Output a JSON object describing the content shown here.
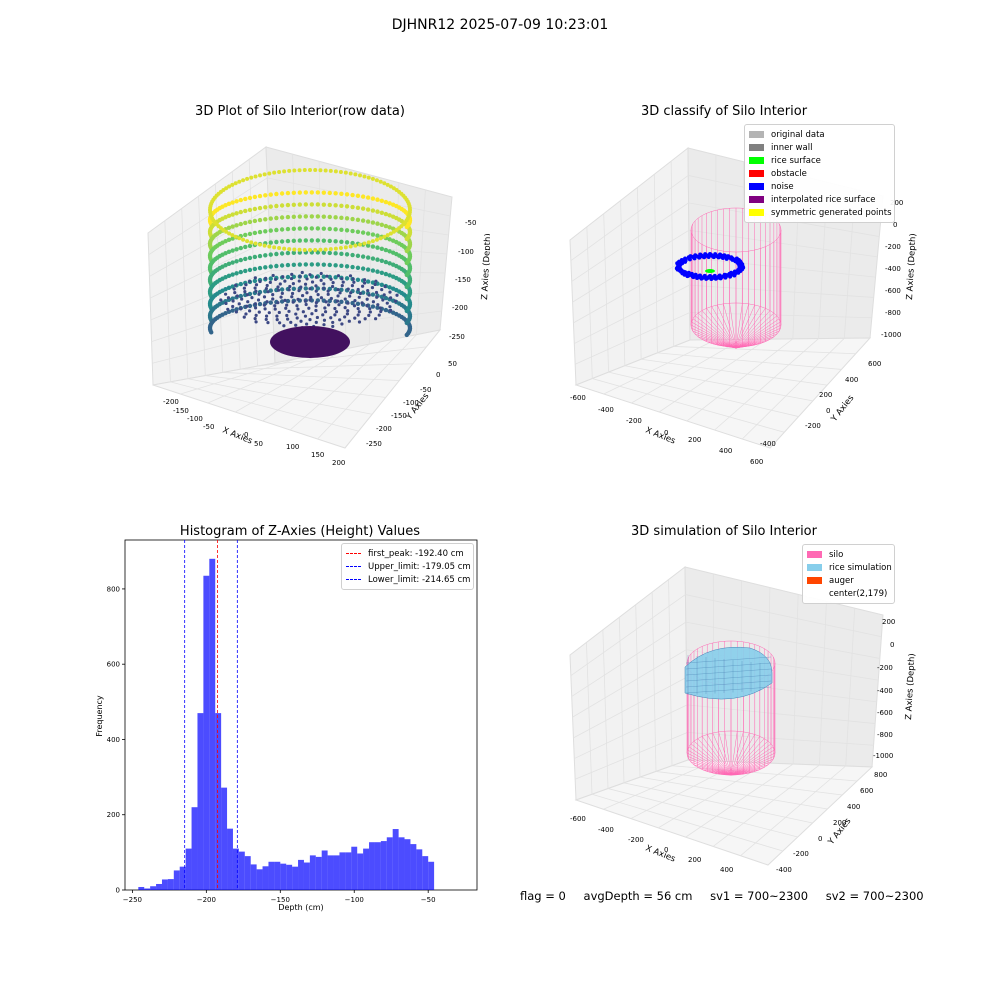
{
  "figure": {
    "suptitle": "DJHNR12 2025-07-09 10:23:01"
  },
  "raw_plot": {
    "title": "3D Plot of Silo Interior(row data)",
    "xlabel": "X Axies",
    "ylabel": "Y Axies",
    "zlabel": "Z Axies (Depth)",
    "x_ticks": [
      "-200",
      "-150",
      "-100",
      "-50",
      "0",
      "50",
      "100",
      "150",
      "200"
    ],
    "y_ticks": [
      "50",
      "0",
      "-50",
      "-100",
      "-150",
      "-200",
      "-250"
    ],
    "z_ticks": [
      "-50",
      "-100",
      "-150",
      "-200",
      "-250"
    ]
  },
  "classify_plot": {
    "title": "3D classify of Silo Interior",
    "xlabel": "X Axies",
    "ylabel": "Y Axies",
    "zlabel": "Z Axies (Depth)",
    "x_ticks": [
      "-600",
      "-400",
      "-200",
      "0",
      "200",
      "400",
      "600"
    ],
    "y_ticks": [
      "600",
      "400",
      "200",
      "0",
      "-200",
      "-400"
    ],
    "z_ticks": [
      "200",
      "0",
      "-200",
      "-400",
      "-600",
      "-800",
      "-1000"
    ],
    "legend": [
      {
        "label": "original data",
        "color": "#b4b4b4"
      },
      {
        "label": "inner wall",
        "color": "#808080"
      },
      {
        "label": "rice surface",
        "color": "#00ff00"
      },
      {
        "label": "obstacle",
        "color": "#ff0000"
      },
      {
        "label": "noise",
        "color": "#0000ff"
      },
      {
        "label": "interpolated rice surface",
        "color": "#800080"
      },
      {
        "label": "symmetric generated points",
        "color": "#ffff00"
      }
    ]
  },
  "sim_plot": {
    "title": "3D simulation of Silo Interior",
    "xlabel": "X Axies",
    "ylabel": "Y Axies",
    "zlabel": "Z Axies (Depth)",
    "x_ticks": [
      "-600",
      "-400",
      "-200",
      "0",
      "200",
      "400",
      "600"
    ],
    "y_ticks": [
      "800",
      "600",
      "400",
      "200",
      "0",
      "-200",
      "-400"
    ],
    "z_ticks": [
      "200",
      "0",
      "-200",
      "-400",
      "-600",
      "-800",
      "-1000"
    ],
    "legend": [
      {
        "label": "silo",
        "color": "#ff69b4"
      },
      {
        "label": "rice simulation",
        "color": "#87ceeb"
      },
      {
        "label": "auger",
        "color": "#ff4500"
      },
      {
        "label": "center(2,179)",
        "color": "#ffffff"
      }
    ]
  },
  "status": {
    "flag": "flag = 0",
    "avg_depth": "avgDepth = 56 cm",
    "sv1": "sv1 = 700~2300",
    "sv2": "sv2 = 700~2300"
  },
  "chart_data": [
    {
      "type": "bar",
      "title": "Histogram of Z-Axies (Height) Values",
      "xlabel": "Depth (cm)",
      "ylabel": "Frequency",
      "bar_color": "#0000ff",
      "xlim": [
        -255,
        -17
      ],
      "ylim": [
        0,
        930
      ],
      "x_ticks": [
        -250,
        -200,
        -150,
        -100,
        -50
      ],
      "y_ticks": [
        0,
        200,
        400,
        600,
        800
      ],
      "bins": [
        {
          "x0": -246,
          "x1": -242,
          "count": 8
        },
        {
          "x0": -242,
          "x1": -238,
          "count": 4
        },
        {
          "x0": -238,
          "x1": -234,
          "count": 10
        },
        {
          "x0": -234,
          "x1": -230,
          "count": 16
        },
        {
          "x0": -230,
          "x1": -226,
          "count": 28
        },
        {
          "x0": -226,
          "x1": -222,
          "count": 29
        },
        {
          "x0": -222,
          "x1": -218,
          "count": 52
        },
        {
          "x0": -218,
          "x1": -214,
          "count": 62
        },
        {
          "x0": -214,
          "x1": -210,
          "count": 110
        },
        {
          "x0": -210,
          "x1": -206,
          "count": 220
        },
        {
          "x0": -206,
          "x1": -202,
          "count": 470
        },
        {
          "x0": -202,
          "x1": -198,
          "count": 835
        },
        {
          "x0": -198,
          "x1": -194,
          "count": 880
        },
        {
          "x0": -194,
          "x1": -190,
          "count": 470
        },
        {
          "x0": -190,
          "x1": -186,
          "count": 272
        },
        {
          "x0": -186,
          "x1": -182,
          "count": 163
        },
        {
          "x0": -182,
          "x1": -178,
          "count": 110
        },
        {
          "x0": -178,
          "x1": -174,
          "count": 102
        },
        {
          "x0": -174,
          "x1": -170,
          "count": 90
        },
        {
          "x0": -170,
          "x1": -166,
          "count": 68
        },
        {
          "x0": -166,
          "x1": -162,
          "count": 55
        },
        {
          "x0": -162,
          "x1": -158,
          "count": 63
        },
        {
          "x0": -158,
          "x1": -154,
          "count": 75
        },
        {
          "x0": -154,
          "x1": -150,
          "count": 75
        },
        {
          "x0": -150,
          "x1": -146,
          "count": 70
        },
        {
          "x0": -146,
          "x1": -142,
          "count": 67
        },
        {
          "x0": -142,
          "x1": -138,
          "count": 62
        },
        {
          "x0": -138,
          "x1": -134,
          "count": 80
        },
        {
          "x0": -134,
          "x1": -130,
          "count": 73
        },
        {
          "x0": -130,
          "x1": -126,
          "count": 92
        },
        {
          "x0": -126,
          "x1": -122,
          "count": 88
        },
        {
          "x0": -122,
          "x1": -118,
          "count": 105
        },
        {
          "x0": -118,
          "x1": -114,
          "count": 92
        },
        {
          "x0": -114,
          "x1": -110,
          "count": 92
        },
        {
          "x0": -110,
          "x1": -106,
          "count": 100
        },
        {
          "x0": -106,
          "x1": -102,
          "count": 100
        },
        {
          "x0": -102,
          "x1": -98,
          "count": 115
        },
        {
          "x0": -98,
          "x1": -94,
          "count": 97
        },
        {
          "x0": -94,
          "x1": -90,
          "count": 110
        },
        {
          "x0": -90,
          "x1": -86,
          "count": 127
        },
        {
          "x0": -86,
          "x1": -82,
          "count": 127
        },
        {
          "x0": -82,
          "x1": -78,
          "count": 130
        },
        {
          "x0": -78,
          "x1": -74,
          "count": 140
        },
        {
          "x0": -74,
          "x1": -70,
          "count": 162
        },
        {
          "x0": -70,
          "x1": -66,
          "count": 140
        },
        {
          "x0": -66,
          "x1": -62,
          "count": 135
        },
        {
          "x0": -62,
          "x1": -58,
          "count": 122
        },
        {
          "x0": -58,
          "x1": -54,
          "count": 108
        },
        {
          "x0": -54,
          "x1": -50,
          "count": 90
        },
        {
          "x0": -50,
          "x1": -46,
          "count": 75
        }
      ],
      "vlines": [
        {
          "name": "first_peak: -192.40 cm",
          "x": -192.4,
          "color": "#ff0000"
        },
        {
          "name": "Upper_limit: -179.05 cm",
          "x": -179.05,
          "color": "#0000ff"
        },
        {
          "name": "Lower_limit: -214.65 cm",
          "x": -214.65,
          "color": "#0000ff"
        }
      ],
      "legend_position": "upper right"
    }
  ]
}
